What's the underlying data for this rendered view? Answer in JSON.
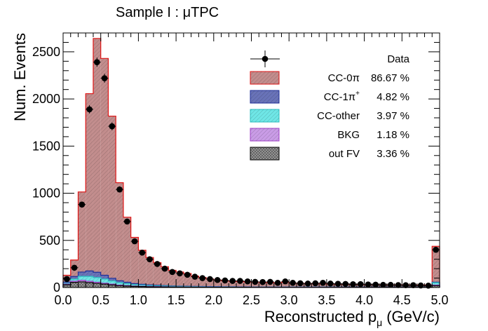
{
  "chart_data": {
    "type": "bar",
    "title": "Sample I : μTPC",
    "xlabel": "Reconstructed p",
    "xlabel_sub": "μ",
    "xlabel_unit": "(GeV/c)",
    "ylabel": "Num. Events",
    "xlim": [
      0.0,
      5.0
    ],
    "ylim": [
      0,
      2700
    ],
    "bin_width": 0.1,
    "x_ticks": [
      "0.0",
      "0.5",
      "1.0",
      "1.5",
      "2.0",
      "2.5",
      "3.0",
      "3.5",
      "4.0",
      "4.5",
      "5.0"
    ],
    "y_ticks": [
      "0",
      "500",
      "1000",
      "1500",
      "2000",
      "2500"
    ],
    "grid": false,
    "legend_position": "top-right",
    "bin_centers": [
      0.05,
      0.15,
      0.25,
      0.35,
      0.45,
      0.55,
      0.65,
      0.75,
      0.85,
      0.95,
      1.05,
      1.15,
      1.25,
      1.35,
      1.45,
      1.55,
      1.65,
      1.75,
      1.85,
      1.95,
      2.05,
      2.15,
      2.25,
      2.35,
      2.45,
      2.55,
      2.65,
      2.75,
      2.85,
      2.95,
      3.05,
      3.15,
      3.25,
      3.35,
      3.45,
      3.55,
      3.65,
      3.75,
      3.85,
      3.95,
      4.05,
      4.15,
      4.25,
      4.35,
      4.45,
      4.55,
      4.65,
      4.75,
      4.85,
      4.95
    ],
    "series": [
      {
        "name": "CC-0π",
        "legend_label": "CC-0π",
        "percent": "86.67 %",
        "color": "#c28d8d",
        "edge": "#e01515",
        "values": [
          72,
          175,
          850,
          1880,
          2480,
          2300,
          1720,
          1040,
          690,
          490,
          360,
          290,
          240,
          200,
          165,
          150,
          135,
          110,
          95,
          80,
          70,
          62,
          58,
          55,
          50,
          50,
          48,
          45,
          42,
          50,
          40,
          38,
          36,
          34,
          32,
          30,
          29,
          28,
          27,
          26,
          25,
          24,
          23,
          22,
          22,
          21,
          20,
          20,
          19,
          380
        ]
      },
      {
        "name": "CC-1π+",
        "legend_label": "CC-1π",
        "legend_sup": "+",
        "percent": "4.82 %",
        "color": "#6973b8",
        "edge": "#1f2f99",
        "values": [
          14,
          28,
          46,
          58,
          56,
          40,
          28,
          20,
          15,
          11,
          9,
          7,
          6,
          5,
          4,
          3,
          3,
          2,
          2,
          2,
          2,
          1,
          1,
          1,
          1,
          1,
          1,
          1,
          1,
          1,
          1,
          1,
          1,
          1,
          1,
          1,
          1,
          1,
          1,
          1,
          1,
          1,
          1,
          1,
          1,
          1,
          1,
          1,
          1,
          6
        ]
      },
      {
        "name": "CC-other",
        "legend_label": "CC-other",
        "percent": "3.97 %",
        "color": "#6fe6e6",
        "edge": "#2cbfc0",
        "values": [
          8,
          22,
          42,
          52,
          50,
          44,
          34,
          26,
          20,
          15,
          12,
          10,
          8,
          7,
          6,
          5,
          5,
          4,
          4,
          3,
          3,
          3,
          3,
          2,
          2,
          2,
          2,
          2,
          2,
          2,
          2,
          2,
          2,
          2,
          2,
          2,
          2,
          2,
          2,
          2,
          2,
          2,
          2,
          2,
          2,
          2,
          2,
          2,
          2,
          25
        ]
      },
      {
        "name": "BKG",
        "legend_label": "BKG",
        "percent": "1.18 %",
        "color": "#c99ce6",
        "edge": "#a040c8",
        "values": [
          6,
          12,
          16,
          14,
          12,
          10,
          8,
          6,
          5,
          4,
          4,
          3,
          3,
          3,
          2,
          2,
          2,
          2,
          2,
          2,
          2,
          2,
          2,
          2,
          2,
          2,
          2,
          2,
          2,
          2,
          2,
          2,
          2,
          2,
          2,
          2,
          2,
          2,
          2,
          2,
          2,
          2,
          2,
          2,
          2,
          2,
          2,
          2,
          2,
          6
        ]
      },
      {
        "name": "out FV",
        "legend_label": "out FV",
        "percent": "3.36 %",
        "color": "#9a9a9a",
        "edge": "#000000",
        "values": [
          30,
          55,
          60,
          52,
          44,
          36,
          28,
          20,
          16,
          12,
          10,
          8,
          7,
          6,
          5,
          5,
          4,
          4,
          3,
          3,
          3,
          3,
          3,
          3,
          3,
          2,
          2,
          2,
          2,
          2,
          2,
          2,
          2,
          2,
          2,
          2,
          2,
          2,
          2,
          2,
          2,
          2,
          2,
          2,
          2,
          2,
          2,
          2,
          2,
          20
        ]
      }
    ],
    "data_points": {
      "name": "Data",
      "values": [
        90,
        210,
        880,
        1890,
        2390,
        2220,
        1710,
        1040,
        700,
        490,
        370,
        300,
        250,
        200,
        165,
        150,
        135,
        115,
        100,
        90,
        80,
        75,
        70,
        70,
        65,
        60,
        58,
        60,
        50,
        65,
        50,
        45,
        42,
        45,
        50,
        42,
        40,
        38,
        35,
        36,
        32,
        30,
        28,
        28,
        26,
        25,
        25,
        22,
        20,
        400
      ]
    }
  }
}
